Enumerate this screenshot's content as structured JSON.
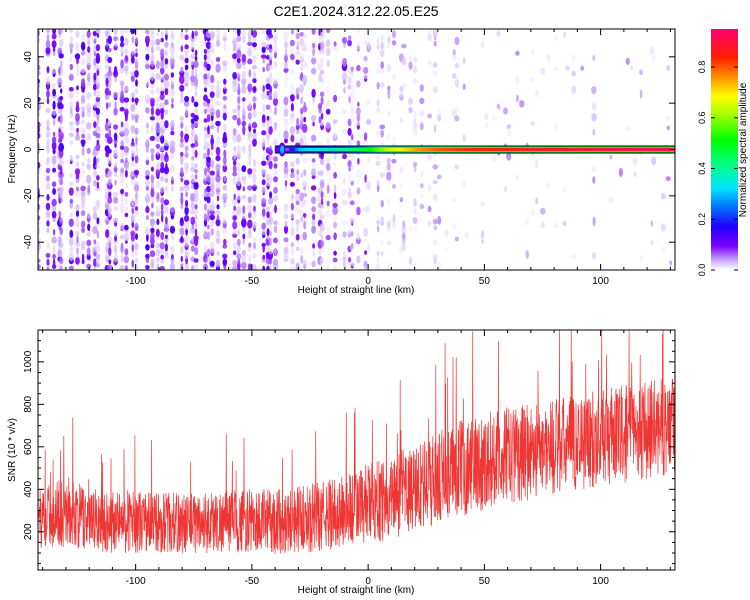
{
  "title": "C2E1.2024.312.22.05.E25",
  "chart_data": [
    {
      "type": "heatmap",
      "xlabel": "Height of straight line (km)",
      "ylabel": "Frequency (Hz)",
      "xlim": [
        -142,
        132
      ],
      "ylim": [
        -52,
        52
      ],
      "xticks": [
        -100,
        -50,
        0,
        50,
        100
      ],
      "xtick_labels": [
        "-100",
        "-50",
        "0",
        "50",
        "100"
      ],
      "yticks": [
        -40,
        -20,
        0,
        20,
        40
      ],
      "ytick_labels": [
        "-40",
        "-20",
        "0",
        "20",
        "40"
      ],
      "colorbar": {
        "label": "Normalized spectral amplitude",
        "range": [
          0,
          0.95
        ],
        "ticks": [
          0.0,
          0.2,
          0.4,
          0.6,
          0.8
        ],
        "tick_labels": [
          "0.0",
          "0.2",
          "0.4",
          "0.6",
          "0.8"
        ],
        "colormap": [
          "#ffffff",
          "#7a00ff",
          "#0000ff",
          "#00e5ff",
          "#00ff00",
          "#ffff00",
          "#ff7a00",
          "#ff0000",
          "#ff00a0"
        ]
      },
      "features": {
        "noise_region_x": [
          -142,
          40
        ],
        "noise_amplitude_range": [
          0.0,
          0.12
        ],
        "carrier_line_frequency_hz": 0,
        "carrier_line_x_range": [
          -40,
          132
        ],
        "carrier_amplitude_profile": {
          "x": [
            -40,
            -35,
            -30,
            -20,
            -10,
            0,
            10,
            20,
            30,
            50,
            80,
            100,
            132
          ],
          "amplitude": [
            0.12,
            0.05,
            0.3,
            0.35,
            0.4,
            0.5,
            0.65,
            0.75,
            0.8,
            0.85,
            0.88,
            0.9,
            0.92
          ]
        }
      }
    },
    {
      "type": "line",
      "xlabel": "Height of straight line (km)",
      "ylabel": "SNR (10 * v/v)",
      "xlim": [
        -142,
        132
      ],
      "ylim": [
        20,
        1150
      ],
      "xticks": [
        -100,
        -50,
        0,
        50,
        100
      ],
      "xtick_labels": [
        "-100",
        "-50",
        "0",
        "50",
        "100"
      ],
      "yticks": [
        200,
        400,
        600,
        800,
        1000
      ],
      "ytick_labels": [
        "200",
        "400",
        "600",
        "800",
        "1000"
      ],
      "color": "#f03535",
      "series": [
        {
          "x": [
            -142,
            -130,
            -120,
            -100,
            -80,
            -60,
            -40,
            -20,
            0,
            20,
            40,
            60,
            80,
            100,
            120,
            132
          ],
          "mean": [
            260,
            300,
            250,
            250,
            240,
            250,
            250,
            270,
            330,
            400,
            500,
            560,
            600,
            640,
            680,
            700
          ],
          "spread": [
            140,
            170,
            150,
            150,
            145,
            150,
            155,
            165,
            190,
            210,
            230,
            230,
            230,
            230,
            230,
            230
          ]
        }
      ]
    }
  ]
}
